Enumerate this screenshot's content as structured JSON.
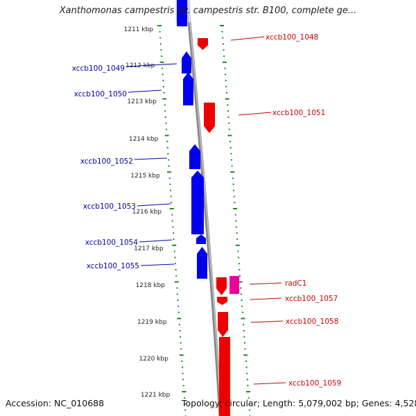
{
  "title": "Xanthomonas campestris pv. campestris str. B100, complete ge...",
  "footer": {
    "accession": "Accession: NC_010688",
    "topology": "Topology: circular; Length: 5,079,002 bp; Genes: 4,528"
  },
  "colors": {
    "forward_gene": "#0000ee",
    "reverse_gene": "#ee0000",
    "rna_gene": "#ee0099",
    "backbone": "#888888",
    "tick": "#1a8a1a",
    "label_left": "#0000aa",
    "label_right": "#cc0000"
  },
  "scale": {
    "unit": "kbp",
    "labels": [
      "1211 kbp",
      "1212 kbp",
      "1213 kbp",
      "1214 kbp",
      "1215 kbp",
      "1216 kbp",
      "1217 kbp",
      "1218 kbp",
      "1219 kbp",
      "1220 kbp",
      "1221 kbp"
    ]
  },
  "genes_left": [
    {
      "label": "xccb100_1049"
    },
    {
      "label": "xccb100_1050"
    },
    {
      "label": "xccb100_1052"
    },
    {
      "label": "xccb100_1053"
    },
    {
      "label": "xccb100_1054"
    },
    {
      "label": "xccb100_1055"
    }
  ],
  "genes_right": [
    {
      "label": "xccb100_1048"
    },
    {
      "label": "xccb100_1051"
    },
    {
      "label": "radC1"
    },
    {
      "label": "xccb100_1057"
    },
    {
      "label": "xccb100_1058"
    },
    {
      "label": "xccb100_1059"
    }
  ]
}
